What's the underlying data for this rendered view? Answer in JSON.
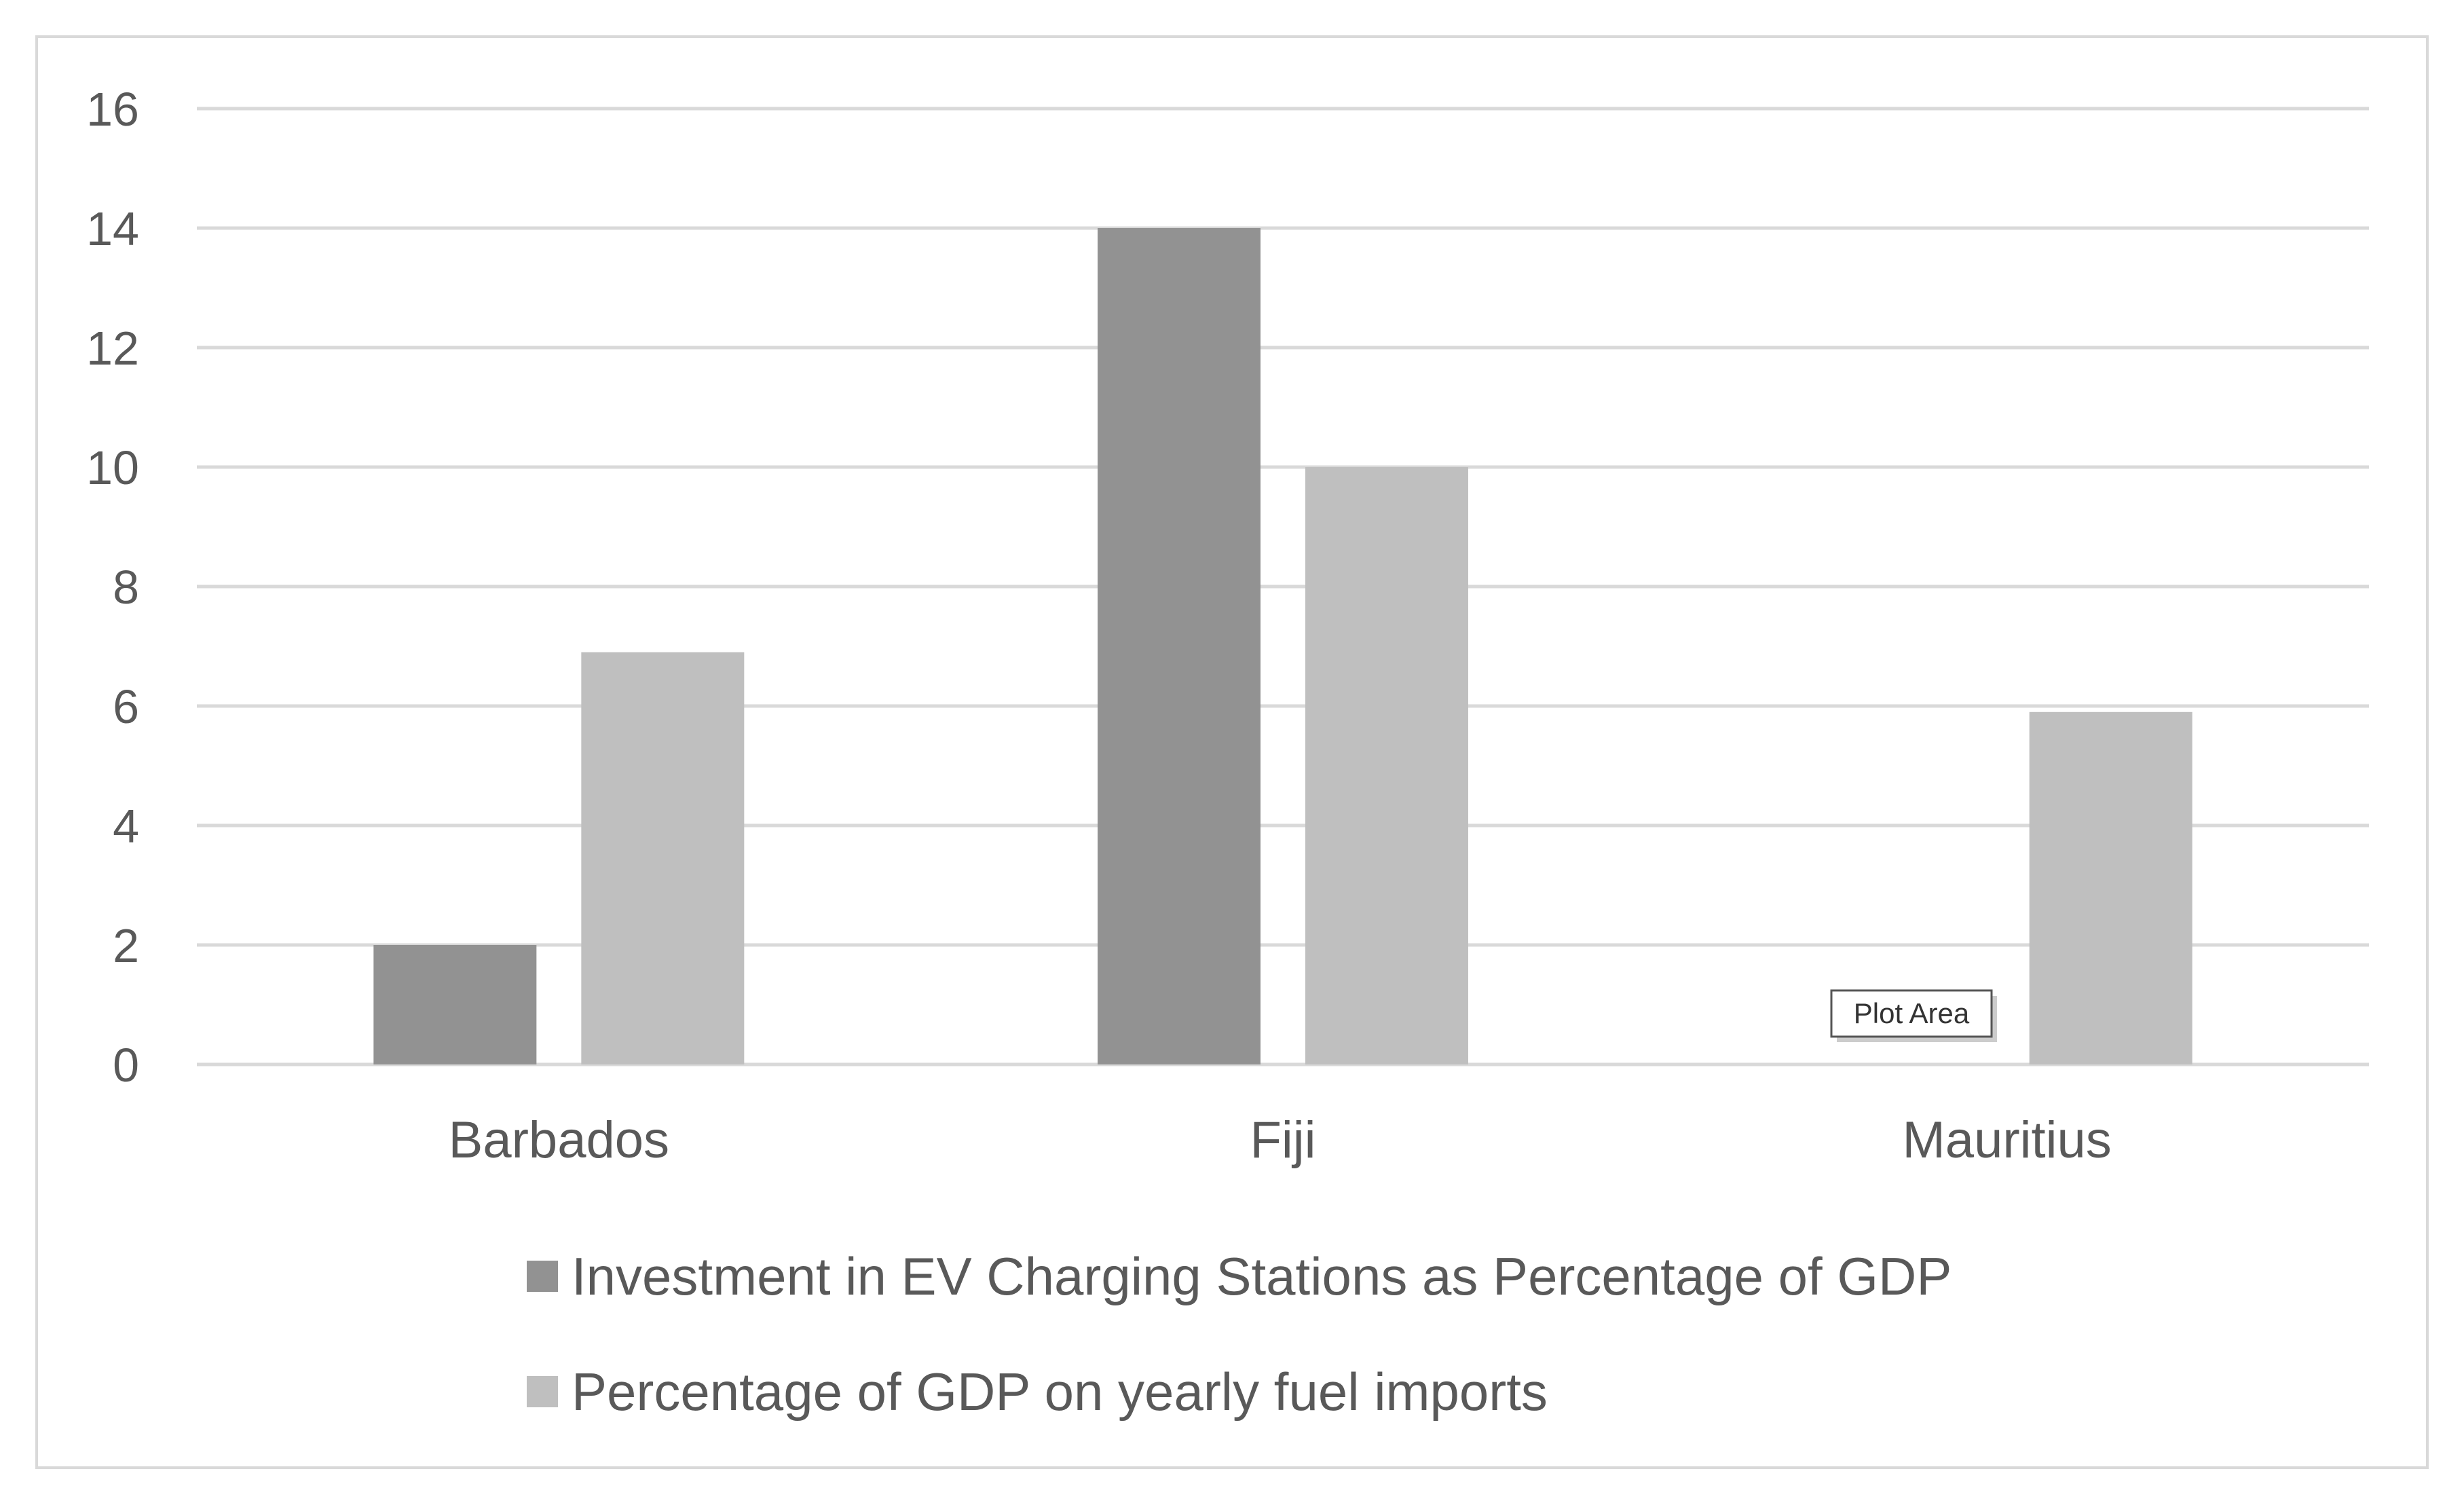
{
  "chart_data": {
    "type": "bar",
    "title": "",
    "xlabel": "",
    "ylabel": "",
    "categories": [
      "Barbados",
      "Fiji",
      "Mauritius"
    ],
    "series": [
      {
        "name": "Investment in EV Charging Stations as Percentage of GDP",
        "values": [
          2,
          14,
          0
        ],
        "color": "#929292"
      },
      {
        "name": "Percentage of GDP on yearly fuel imports",
        "values": [
          6.9,
          10,
          5.9
        ],
        "color": "#bfbfbf"
      }
    ],
    "ylim": [
      0,
      16
    ],
    "yticks": [
      0,
      2,
      4,
      6,
      8,
      10,
      12,
      14,
      16
    ],
    "grid": true,
    "legend_position": "bottom",
    "gridline_color": "#d9d9d9",
    "tooltip": {
      "label": "Plot Area"
    }
  }
}
